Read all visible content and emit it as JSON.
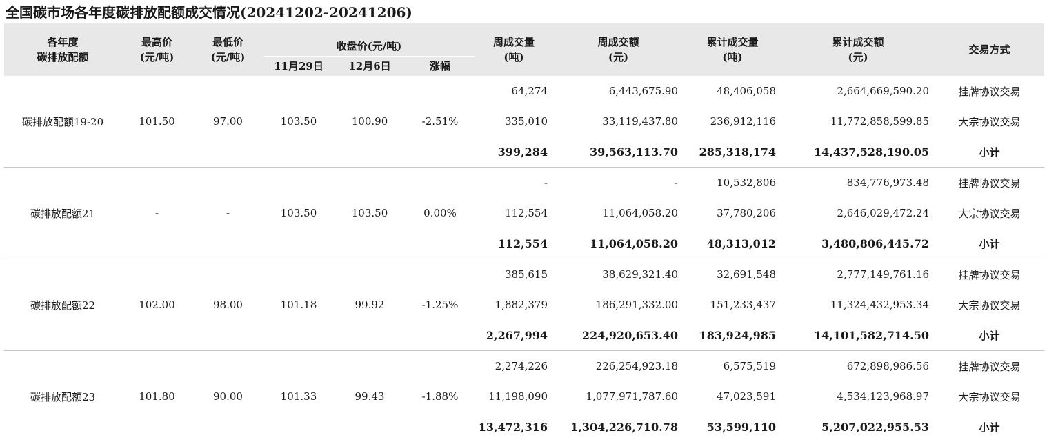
{
  "title": "全国碳市场各年度碳排放配额成交情况(20241202-20241206)",
  "header": {
    "year": [
      "各年度",
      "碳排放配额"
    ],
    "high": [
      "最高价",
      "(元/吨)"
    ],
    "low": [
      "最低价",
      "(元/吨)"
    ],
    "close_group": "收盘价(元/吨)",
    "close_prev": "11月29日",
    "close_curr": "12月6日",
    "change": "涨幅",
    "week_vol": [
      "周成交量",
      "(吨)"
    ],
    "week_amt": [
      "周成交额",
      "(元)"
    ],
    "cum_vol": [
      "累计成交量",
      "(吨)"
    ],
    "cum_amt": [
      "累计成交额",
      "(元)"
    ],
    "mode": "交易方式"
  },
  "groups": [
    {
      "name": "碳排放配额19-20",
      "high": "101.50",
      "low": "97.00",
      "prev": "103.50",
      "curr": "100.90",
      "chg": "-2.51%",
      "rows": [
        {
          "wv": "64,274",
          "wa": "6,443,675.90",
          "cv": "48,406,058",
          "ca": "2,664,669,590.20",
          "mode": "挂牌协议交易"
        },
        {
          "wv": "335,010",
          "wa": "33,119,437.80",
          "cv": "236,912,116",
          "ca": "11,772,858,599.85",
          "mode": "大宗协议交易"
        },
        {
          "wv": "399,284",
          "wa": "39,563,113.70",
          "cv": "285,318,174",
          "ca": "14,437,528,190.05",
          "mode": "小计"
        }
      ]
    },
    {
      "name": "碳排放配额21",
      "high": "-",
      "low": "-",
      "prev": "103.50",
      "curr": "103.50",
      "chg": "0.00%",
      "rows": [
        {
          "wv": "-",
          "wa": "-",
          "cv": "10,532,806",
          "ca": "834,776,973.48",
          "mode": "挂牌协议交易"
        },
        {
          "wv": "112,554",
          "wa": "11,064,058.20",
          "cv": "37,780,206",
          "ca": "2,646,029,472.24",
          "mode": "大宗协议交易"
        },
        {
          "wv": "112,554",
          "wa": "11,064,058.20",
          "cv": "48,313,012",
          "ca": "3,480,806,445.72",
          "mode": "小计"
        }
      ]
    },
    {
      "name": "碳排放配额22",
      "high": "102.00",
      "low": "98.00",
      "prev": "101.18",
      "curr": "99.92",
      "chg": "-1.25%",
      "rows": [
        {
          "wv": "385,615",
          "wa": "38,629,321.40",
          "cv": "32,691,548",
          "ca": "2,777,149,761.16",
          "mode": "挂牌协议交易"
        },
        {
          "wv": "1,882,379",
          "wa": "186,291,332.00",
          "cv": "151,233,437",
          "ca": "11,324,432,953.34",
          "mode": "大宗协议交易"
        },
        {
          "wv": "2,267,994",
          "wa": "224,920,653.40",
          "cv": "183,924,985",
          "ca": "14,101,582,714.50",
          "mode": "小计"
        }
      ]
    },
    {
      "name": "碳排放配额23",
      "high": "101.80",
      "low": "90.00",
      "prev": "101.33",
      "curr": "99.43",
      "chg": "-1.88%",
      "rows": [
        {
          "wv": "2,274,226",
          "wa": "226,254,923.18",
          "cv": "6,575,519",
          "ca": "672,898,986.56",
          "mode": "挂牌协议交易"
        },
        {
          "wv": "11,198,090",
          "wa": "1,077,971,787.60",
          "cv": "47,023,591",
          "ca": "4,534,123,968.97",
          "mode": "大宗协议交易"
        },
        {
          "wv": "13,472,316",
          "wa": "1,304,226,710.78",
          "cv": "53,599,110",
          "ca": "5,207,022,955.53",
          "mode": "小计"
        }
      ]
    }
  ]
}
